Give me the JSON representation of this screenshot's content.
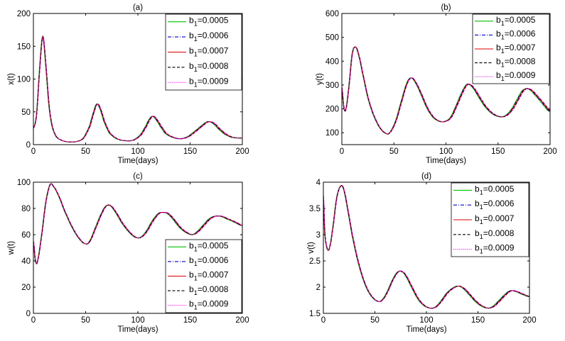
{
  "chart_data": [
    {
      "type": "line",
      "panel": "(a)",
      "title": "(a)",
      "xlabel": "Time(days)",
      "ylabel": "x(t)",
      "xlim": [
        0,
        200
      ],
      "ylim": [
        0,
        200
      ],
      "xticks": [
        0,
        50,
        100,
        150,
        200
      ],
      "yticks": [
        0,
        50,
        100,
        150,
        200
      ],
      "legend_position": "top-right",
      "series": [
        {
          "name": "b1=0.0005",
          "label_main": "b",
          "label_sub": "1",
          "label_rest": "=0.0005",
          "color": "#00c000",
          "dash": "solid"
        },
        {
          "name": "b1=0.0006",
          "label_main": "b",
          "label_sub": "1",
          "label_rest": "=0.0006",
          "color": "#0000cc",
          "dash": "dashdot"
        },
        {
          "name": "b1=0.0007",
          "label_main": "b",
          "label_sub": "1",
          "label_rest": "=0.0007",
          "color": "#e00000",
          "dash": "solid"
        },
        {
          "name": "b1=0.0008",
          "label_main": "b",
          "label_sub": "1",
          "label_rest": "=0.0008",
          "color": "#000000",
          "dash": "dashed"
        },
        {
          "name": "b1=0.0009",
          "label_main": "b",
          "label_sub": "1",
          "label_rest": "=0.0009",
          "color": "#ff00ff",
          "dash": "dotted"
        }
      ],
      "keypoints": [
        [
          0,
          25
        ],
        [
          3,
          45
        ],
        [
          6,
          115
        ],
        [
          9,
          165
        ],
        [
          12,
          120
        ],
        [
          15,
          60
        ],
        [
          18,
          28
        ],
        [
          22,
          12
        ],
        [
          28,
          6
        ],
        [
          35,
          4
        ],
        [
          42,
          5
        ],
        [
          48,
          10
        ],
        [
          54,
          28
        ],
        [
          58,
          50
        ],
        [
          61,
          62
        ],
        [
          64,
          55
        ],
        [
          68,
          35
        ],
        [
          73,
          18
        ],
        [
          80,
          9
        ],
        [
          88,
          6
        ],
        [
          96,
          7
        ],
        [
          103,
          15
        ],
        [
          108,
          28
        ],
        [
          112,
          40
        ],
        [
          115,
          43
        ],
        [
          118,
          38
        ],
        [
          122,
          28
        ],
        [
          127,
          17
        ],
        [
          134,
          11
        ],
        [
          141,
          9
        ],
        [
          148,
          12
        ],
        [
          155,
          20
        ],
        [
          162,
          29
        ],
        [
          166,
          34
        ],
        [
          169,
          35
        ],
        [
          173,
          32
        ],
        [
          178,
          24
        ],
        [
          184,
          16
        ],
        [
          191,
          11
        ],
        [
          200,
          10
        ]
      ],
      "lag_per_series": [
        1.6,
        0.8,
        0,
        -0.8,
        -1.6
      ],
      "lag_growth": 0.6
    },
    {
      "type": "line",
      "panel": "(b)",
      "title": "(b)",
      "xlabel": "Time(days)",
      "ylabel": "y(t)",
      "xlim": [
        0,
        200
      ],
      "ylim": [
        50,
        600
      ],
      "xticks": [
        0,
        50,
        100,
        150,
        200
      ],
      "yticks": [
        100,
        200,
        300,
        400,
        500,
        600
      ],
      "legend_position": "top-right",
      "series": [
        {
          "name": "b1=0.0005",
          "label_main": "b",
          "label_sub": "1",
          "label_rest": "=0.0005",
          "color": "#00c000",
          "dash": "solid"
        },
        {
          "name": "b1=0.0006",
          "label_main": "b",
          "label_sub": "1",
          "label_rest": "=0.0006",
          "color": "#0000cc",
          "dash": "dashdot"
        },
        {
          "name": "b1=0.0007",
          "label_main": "b",
          "label_sub": "1",
          "label_rest": "=0.0007",
          "color": "#e00000",
          "dash": "solid"
        },
        {
          "name": "b1=0.0008",
          "label_main": "b",
          "label_sub": "1",
          "label_rest": "=0.0008",
          "color": "#000000",
          "dash": "dashed"
        },
        {
          "name": "b1=0.0009",
          "label_main": "b",
          "label_sub": "1",
          "label_rest": "=0.0009",
          "color": "#ff00ff",
          "dash": "dotted"
        }
      ],
      "keypoints": [
        [
          0,
          290
        ],
        [
          2,
          205
        ],
        [
          4,
          200
        ],
        [
          7,
          300
        ],
        [
          10,
          430
        ],
        [
          13,
          460
        ],
        [
          16,
          430
        ],
        [
          20,
          350
        ],
        [
          25,
          250
        ],
        [
          30,
          180
        ],
        [
          36,
          125
        ],
        [
          42,
          98
        ],
        [
          46,
          100
        ],
        [
          52,
          150
        ],
        [
          58,
          240
        ],
        [
          63,
          310
        ],
        [
          67,
          330
        ],
        [
          71,
          310
        ],
        [
          76,
          265
        ],
        [
          82,
          205
        ],
        [
          88,
          165
        ],
        [
          94,
          148
        ],
        [
          99,
          147
        ],
        [
          105,
          165
        ],
        [
          111,
          220
        ],
        [
          116,
          270
        ],
        [
          120,
          300
        ],
        [
          123,
          302
        ],
        [
          127,
          285
        ],
        [
          132,
          250
        ],
        [
          138,
          210
        ],
        [
          145,
          180
        ],
        [
          152,
          167
        ],
        [
          158,
          172
        ],
        [
          164,
          200
        ],
        [
          170,
          245
        ],
        [
          174,
          275
        ],
        [
          178,
          285
        ],
        [
          182,
          278
        ],
        [
          187,
          255
        ],
        [
          193,
          225
        ],
        [
          200,
          190
        ]
      ],
      "lag_per_series": [
        1.6,
        0.8,
        0,
        -0.8,
        -1.6
      ],
      "lag_growth": 0.6
    },
    {
      "type": "line",
      "panel": "(c)",
      "title": "(c)",
      "xlabel": "Time(days)",
      "ylabel": "w(t)",
      "xlim": [
        0,
        200
      ],
      "ylim": [
        0,
        100
      ],
      "xticks": [
        0,
        50,
        100,
        150,
        200
      ],
      "yticks": [
        0,
        20,
        40,
        60,
        80,
        100
      ],
      "legend_position": "bottom-right",
      "series": [
        {
          "name": "b1=0.0005",
          "label_main": "b",
          "label_sub": "1",
          "label_rest": "=0.0005",
          "color": "#00c000",
          "dash": "solid"
        },
        {
          "name": "b1=0.0006",
          "label_main": "b",
          "label_sub": "1",
          "label_rest": "=0.0006",
          "color": "#0000cc",
          "dash": "dashdot"
        },
        {
          "name": "b1=0.0007",
          "label_main": "b",
          "label_sub": "1",
          "label_rest": "=0.0007",
          "color": "#e00000",
          "dash": "solid"
        },
        {
          "name": "b1=0.0008",
          "label_main": "b",
          "label_sub": "1",
          "label_rest": "=0.0008",
          "color": "#000000",
          "dash": "dashed"
        },
        {
          "name": "b1=0.0009",
          "label_main": "b",
          "label_sub": "1",
          "label_rest": "=0.0009",
          "color": "#ff00ff",
          "dash": "dotted"
        }
      ],
      "keypoints": [
        [
          0,
          55
        ],
        [
          2,
          40
        ],
        [
          4,
          40
        ],
        [
          8,
          60
        ],
        [
          12,
          85
        ],
        [
          16,
          98
        ],
        [
          19,
          97
        ],
        [
          24,
          90
        ],
        [
          30,
          78
        ],
        [
          37,
          66
        ],
        [
          44,
          57
        ],
        [
          50,
          53
        ],
        [
          54,
          55
        ],
        [
          60,
          66
        ],
        [
          66,
          77
        ],
        [
          70,
          82
        ],
        [
          74,
          82
        ],
        [
          79,
          77
        ],
        [
          85,
          69
        ],
        [
          92,
          62
        ],
        [
          98,
          58
        ],
        [
          103,
          58
        ],
        [
          108,
          62
        ],
        [
          114,
          70
        ],
        [
          120,
          76
        ],
        [
          125,
          77
        ],
        [
          129,
          76
        ],
        [
          134,
          72
        ],
        [
          140,
          66
        ],
        [
          146,
          62
        ],
        [
          152,
          60
        ],
        [
          157,
          62
        ],
        [
          163,
          67
        ],
        [
          169,
          72
        ],
        [
          174,
          74
        ],
        [
          180,
          74
        ],
        [
          186,
          72
        ],
        [
          192,
          70
        ],
        [
          200,
          67
        ]
      ],
      "lag_per_series": [
        1.6,
        0.8,
        0,
        -0.8,
        -1.6
      ],
      "lag_growth": 0.6
    },
    {
      "type": "line",
      "panel": "(d)",
      "title": "(d)",
      "xlabel": "Time(days)",
      "ylabel": "v(t)",
      "xlim": [
        0,
        200
      ],
      "ylim": [
        1.5,
        4
      ],
      "xticks": [
        0,
        50,
        100,
        150,
        200
      ],
      "yticks": [
        1.5,
        2,
        2.5,
        3,
        3.5,
        4
      ],
      "legend_position": "top-right",
      "series": [
        {
          "name": "b1=0.0005",
          "label_main": "b",
          "label_sub": "1",
          "label_rest": "=0.0005",
          "color": "#00c000",
          "dash": "solid"
        },
        {
          "name": "b1=0.0006",
          "label_main": "b",
          "label_sub": "1",
          "label_rest": "=0.0006",
          "color": "#0000cc",
          "dash": "dashdot"
        },
        {
          "name": "b1=0.0007",
          "label_main": "b",
          "label_sub": "1",
          "label_rest": "=0.0007",
          "color": "#e00000",
          "dash": "solid"
        },
        {
          "name": "b1=0.0008",
          "label_main": "b",
          "label_sub": "1",
          "label_rest": "=0.0008",
          "color": "#000000",
          "dash": "dashed"
        },
        {
          "name": "b1=0.0009",
          "label_main": "b",
          "label_sub": "1",
          "label_rest": "=0.0009",
          "color": "#ff00ff",
          "dash": "dotted"
        }
      ],
      "keypoints": [
        [
          0,
          3.75
        ],
        [
          1,
          3.2
        ],
        [
          2,
          2.9
        ],
        [
          4,
          2.72
        ],
        [
          6,
          2.75
        ],
        [
          9,
          3.1
        ],
        [
          13,
          3.7
        ],
        [
          17,
          3.93
        ],
        [
          20,
          3.85
        ],
        [
          24,
          3.45
        ],
        [
          28,
          3.0
        ],
        [
          33,
          2.55
        ],
        [
          38,
          2.2
        ],
        [
          43,
          1.95
        ],
        [
          48,
          1.8
        ],
        [
          53,
          1.73
        ],
        [
          57,
          1.75
        ],
        [
          62,
          1.9
        ],
        [
          67,
          2.12
        ],
        [
          72,
          2.28
        ],
        [
          76,
          2.3
        ],
        [
          80,
          2.22
        ],
        [
          86,
          2.0
        ],
        [
          92,
          1.78
        ],
        [
          98,
          1.65
        ],
        [
          104,
          1.6
        ],
        [
          109,
          1.62
        ],
        [
          114,
          1.72
        ],
        [
          120,
          1.88
        ],
        [
          126,
          1.98
        ],
        [
          131,
          2.02
        ],
        [
          136,
          1.98
        ],
        [
          142,
          1.86
        ],
        [
          148,
          1.73
        ],
        [
          154,
          1.64
        ],
        [
          160,
          1.6
        ],
        [
          165,
          1.63
        ],
        [
          171,
          1.74
        ],
        [
          177,
          1.86
        ],
        [
          182,
          1.93
        ],
        [
          187,
          1.92
        ],
        [
          193,
          1.87
        ],
        [
          200,
          1.82
        ]
      ],
      "lag_per_series": [
        1.6,
        0.8,
        0,
        -0.8,
        -1.6
      ],
      "lag_growth": 0.6
    }
  ]
}
